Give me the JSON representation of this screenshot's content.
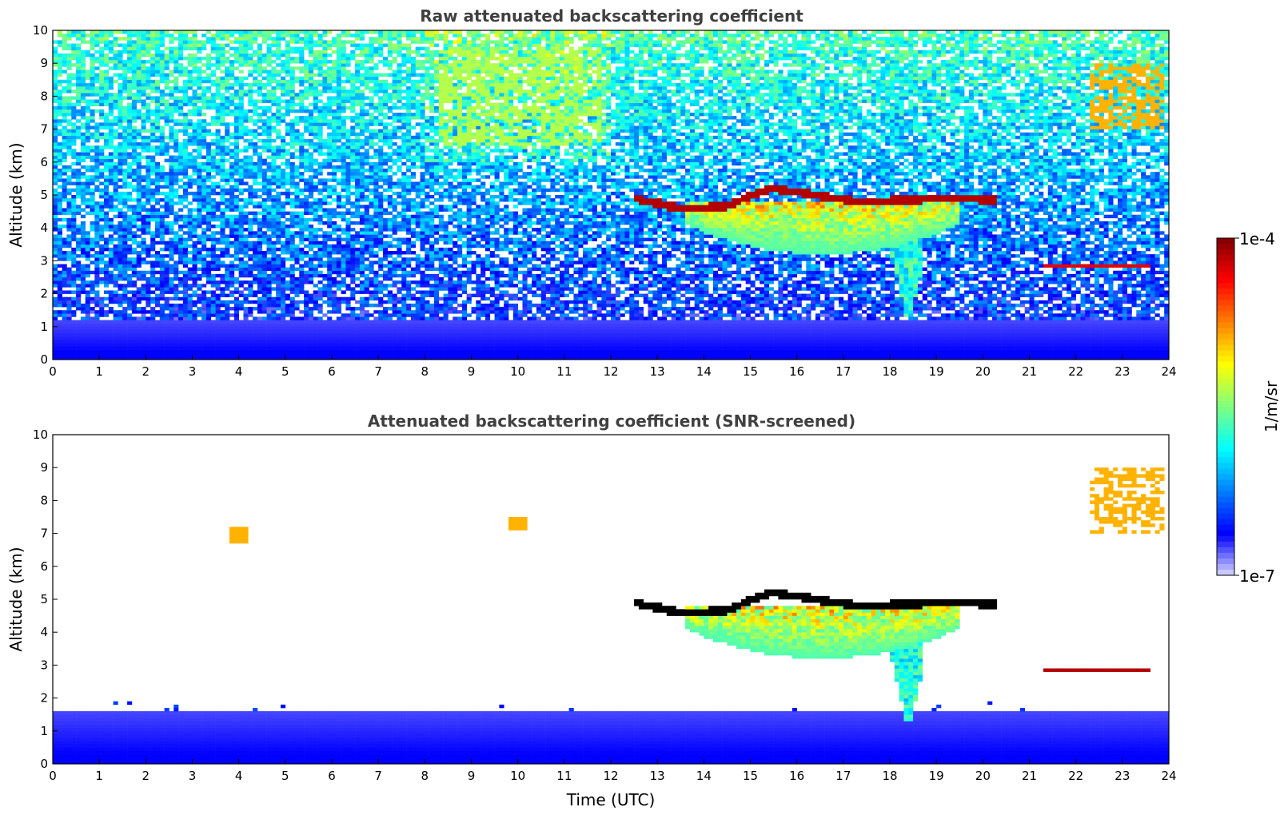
{
  "chart_data": [
    {
      "type": "heatmap",
      "title": "Raw attenuated backscattering coefficient",
      "xlabel": "",
      "ylabel": "Altitude (km)",
      "xlim": [
        0,
        24
      ],
      "ylim": [
        0,
        10
      ],
      "x_ticks": [
        "0",
        "1",
        "2",
        "3",
        "4",
        "5",
        "6",
        "7",
        "8",
        "9",
        "10",
        "11",
        "12",
        "13",
        "14",
        "15",
        "16",
        "17",
        "18",
        "19",
        "20",
        "21",
        "22",
        "23",
        "24"
      ],
      "y_ticks": [
        "0",
        "1",
        "2",
        "3",
        "4",
        "5",
        "6",
        "7",
        "8",
        "9",
        "10"
      ],
      "features": [
        {
          "kind": "surface_layer",
          "start": 0,
          "end": 24,
          "base": 0,
          "top": 1.2,
          "level": 0.08
        },
        {
          "kind": "cloud_base",
          "start": 12.5,
          "end": 20.3,
          "altitude": [
            4.9,
            4.6,
            4.65,
            5.2,
            5.0,
            4.8,
            4.85,
            4.9,
            4.85
          ],
          "level": 0.95
        },
        {
          "kind": "cloud_body",
          "start": 13.6,
          "end": 19.5,
          "top": 4.8,
          "base": 3.2,
          "level": 0.45
        },
        {
          "kind": "virga",
          "time": 18.4,
          "top": 4.4,
          "base": 1.0,
          "level": 0.3
        },
        {
          "kind": "cirrus",
          "start": 22.3,
          "end": 23.9,
          "top": 9.0,
          "base": 7.0,
          "level": 0.7
        },
        {
          "kind": "cirrus",
          "start": 8.3,
          "end": 11.8,
          "top": 9.5,
          "base": 6.5,
          "level": 0.55
        },
        {
          "kind": "thin_layer",
          "start": 21.3,
          "end": 23.6,
          "altitude": 2.85,
          "level": 0.9
        }
      ]
    },
    {
      "type": "heatmap",
      "title": "Attenuated backscattering coefficient (SNR-screened)",
      "xlabel": "Time (UTC)",
      "ylabel": "Altitude (km)",
      "xlim": [
        0,
        24
      ],
      "ylim": [
        0,
        10
      ],
      "x_ticks": [
        "0",
        "1",
        "2",
        "3",
        "4",
        "5",
        "6",
        "7",
        "8",
        "9",
        "10",
        "11",
        "12",
        "13",
        "14",
        "15",
        "16",
        "17",
        "18",
        "19",
        "20",
        "21",
        "22",
        "23",
        "24"
      ],
      "y_ticks": [
        "0",
        "1",
        "2",
        "3",
        "4",
        "5",
        "6",
        "7",
        "8",
        "9",
        "10"
      ],
      "features": [
        {
          "kind": "surface_layer",
          "start": 0,
          "end": 24,
          "base": 0,
          "top": 1.6,
          "level": 0.08
        },
        {
          "kind": "cloud_base",
          "start": 12.5,
          "end": 20.3,
          "altitude": [
            4.9,
            4.6,
            4.65,
            5.2,
            5.0,
            4.8,
            4.85,
            4.9,
            4.85
          ],
          "level": 1.0
        },
        {
          "kind": "cloud_body",
          "start": 13.6,
          "end": 19.5,
          "top": 4.8,
          "base": 3.2,
          "level": 0.45
        },
        {
          "kind": "virga",
          "time": 18.4,
          "top": 4.4,
          "base": 1.0,
          "level": 0.3
        },
        {
          "kind": "cirrus",
          "start": 22.3,
          "end": 23.9,
          "top": 9.0,
          "base": 7.0,
          "level": 0.7
        },
        {
          "kind": "patch",
          "time": 4.0,
          "altitude": 6.9,
          "level": 0.7
        },
        {
          "kind": "patch",
          "time": 10.0,
          "altitude": 7.3,
          "level": 0.7
        },
        {
          "kind": "thin_layer",
          "start": 21.3,
          "end": 23.6,
          "altitude": 2.85,
          "level": 0.95
        }
      ]
    }
  ],
  "colorbar": {
    "label": "1/m/sr",
    "max_label": "1e-4",
    "min_label": "1e-7",
    "colormap": "jet",
    "scale": "log"
  },
  "colors": {
    "title": "#404040",
    "cmap_low": "#00007f",
    "cmap_high": "#7f0000"
  }
}
